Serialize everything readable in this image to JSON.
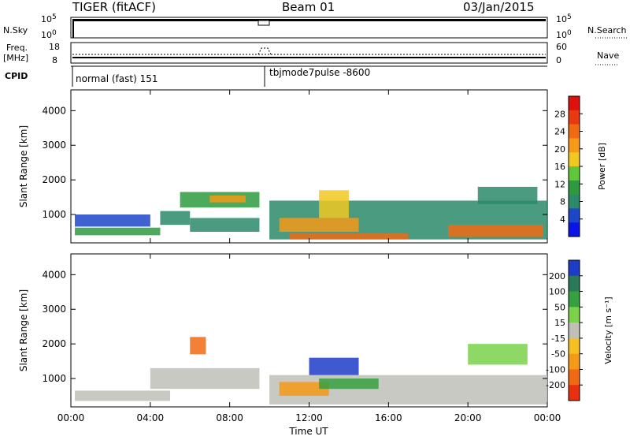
{
  "header": {
    "radar": "TIGER (fitACF)",
    "beam": "Beam 01",
    "date": "03/Jan/2015"
  },
  "top_panels": {
    "nsky_label": "N.Sky",
    "nsky_ticks": [
      "10^5",
      "10^0"
    ],
    "nsearch_label": "N.Search",
    "nsearch_ticks": [
      "10^5",
      "10^0"
    ],
    "freq_label_line1": "Freq.",
    "freq_label_line2": "[MHz]",
    "freq_ticks": [
      "18",
      "8"
    ],
    "nave_label": "Nave",
    "nave_ticks": [
      "60",
      "0"
    ],
    "cpid_label": "CPID",
    "cpid_segments": [
      "normal (fast) 151",
      "tbjmode7pulse -8600"
    ]
  },
  "chart_data": [
    {
      "type": "heatmap",
      "title": "",
      "xlabel": "Time UT",
      "ylabel": "Slant Range [km]",
      "x_ticks": [
        "00:00",
        "04:00",
        "08:00",
        "12:00",
        "16:00",
        "20:00",
        "00:00"
      ],
      "x_range_hours": [
        0,
        24
      ],
      "y_ticks": [
        1000,
        2000,
        3000,
        4000
      ],
      "y_range": [
        180,
        4600
      ],
      "colorbar": {
        "label": "Power [dB]",
        "ticks": [
          4,
          8,
          12,
          16,
          20,
          24,
          28
        ],
        "colors": [
          "#0a14e6",
          "#1e46c8",
          "#2a8a6a",
          "#2e9a40",
          "#5fc83a",
          "#f0c820",
          "#f59a18",
          "#f06a14",
          "#e83a12",
          "#e0100c"
        ]
      },
      "regions": [
        {
          "t0": 0.2,
          "t1": 4.5,
          "r0": 400,
          "r1": 620,
          "value": 12
        },
        {
          "t0": 0.2,
          "t1": 4.0,
          "r0": 650,
          "r1": 1000,
          "value": 6
        },
        {
          "t0": 4.5,
          "t1": 6.0,
          "r0": 700,
          "r1": 1100,
          "value": 8
        },
        {
          "t0": 5.5,
          "t1": 9.5,
          "r0": 1200,
          "r1": 1650,
          "value": 10
        },
        {
          "t0": 7.0,
          "t1": 8.8,
          "r0": 1350,
          "r1": 1550,
          "value": 20
        },
        {
          "t0": 6.0,
          "t1": 9.5,
          "r0": 500,
          "r1": 900,
          "value": 9
        },
        {
          "t0": 10.0,
          "t1": 24.0,
          "r0": 280,
          "r1": 1400,
          "value": 9
        },
        {
          "t0": 10.5,
          "t1": 14.5,
          "r0": 500,
          "r1": 900,
          "value": 20
        },
        {
          "t0": 12.5,
          "t1": 14.0,
          "r0": 900,
          "r1": 1700,
          "value": 16
        },
        {
          "t0": 11.0,
          "t1": 17.0,
          "r0": 280,
          "r1": 450,
          "value": 24
        },
        {
          "t0": 19.0,
          "t1": 23.8,
          "r0": 350,
          "r1": 700,
          "value": 24
        },
        {
          "t0": 20.5,
          "t1": 23.5,
          "r0": 1300,
          "r1": 1800,
          "value": 8
        }
      ]
    },
    {
      "type": "heatmap",
      "title": "",
      "xlabel": "Time UT",
      "ylabel": "Slant Range [km]",
      "x_ticks": [
        "00:00",
        "04:00",
        "08:00",
        "12:00",
        "16:00",
        "20:00",
        "00:00"
      ],
      "x_range_hours": [
        0,
        24
      ],
      "y_ticks": [
        1000,
        2000,
        3000,
        4000
      ],
      "y_range": [
        180,
        4600
      ],
      "colorbar": {
        "label": "Velocity [m s⁻¹]",
        "ticks": [
          200,
          100,
          50,
          15,
          -15,
          -50,
          -100,
          -200
        ],
        "colors": [
          "#1e3cc8",
          "#2a7a5a",
          "#36a040",
          "#7ad24a",
          "#c0c0b8",
          "#f5c020",
          "#f59a18",
          "#f06a14",
          "#e8300e"
        ]
      },
      "regions": [
        {
          "t0": 0.2,
          "t1": 5.0,
          "r0": 350,
          "r1": 650,
          "value": 0
        },
        {
          "t0": 4.0,
          "t1": 9.5,
          "r0": 700,
          "r1": 1300,
          "value": 0
        },
        {
          "t0": 6.0,
          "t1": 6.8,
          "r0": 1700,
          "r1": 2200,
          "value": -150
        },
        {
          "t0": 10.0,
          "t1": 24.0,
          "r0": 250,
          "r1": 1100,
          "value": 0
        },
        {
          "t0": 10.5,
          "t1": 13.0,
          "r0": 500,
          "r1": 900,
          "value": -80
        },
        {
          "t0": 12.0,
          "t1": 14.5,
          "r0": 1100,
          "r1": 1600,
          "value": 200
        },
        {
          "t0": 12.5,
          "t1": 15.5,
          "r0": 700,
          "r1": 1000,
          "value": 70
        },
        {
          "t0": 20.0,
          "t1": 23.0,
          "r0": 1400,
          "r1": 2000,
          "value": 30
        }
      ]
    }
  ]
}
